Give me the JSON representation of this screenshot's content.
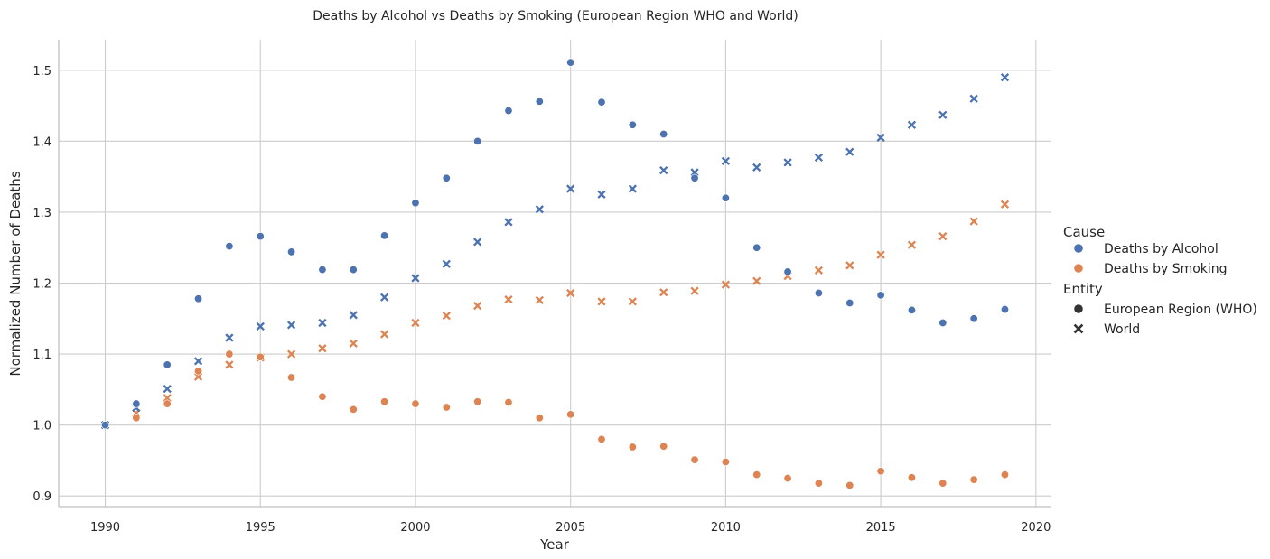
{
  "chart_data": {
    "type": "scatter",
    "title": "Deaths by Alcohol vs Deaths by Smoking (European Region WHO and World)",
    "xlabel": "Year",
    "ylabel": "Normalized Number of Deaths",
    "xlim": [
      1988.5,
      2020.5
    ],
    "ylim": [
      0.885,
      1.543
    ],
    "xticks": [
      1990,
      1995,
      2000,
      2005,
      2010,
      2015,
      2020
    ],
    "yticks": [
      0.9,
      1.0,
      1.1,
      1.2,
      1.3,
      1.4,
      1.5
    ],
    "grid": true,
    "legend_placement": "right",
    "legend": {
      "hue_title": "Cause",
      "hue_items": [
        {
          "label": "Deaths by Alcohol",
          "color": "#4c72b0"
        },
        {
          "label": "Deaths by Smoking",
          "color": "#dd8452"
        }
      ],
      "style_title": "Entity",
      "style_items": [
        {
          "label": "European Region (WHO)",
          "marker": "circle"
        },
        {
          "label": "World",
          "marker": "x"
        }
      ]
    },
    "x": [
      1990,
      1991,
      1992,
      1993,
      1994,
      1995,
      1996,
      1997,
      1998,
      1999,
      2000,
      2001,
      2002,
      2003,
      2004,
      2005,
      2006,
      2007,
      2008,
      2009,
      2010,
      2011,
      2012,
      2013,
      2014,
      2015,
      2016,
      2017,
      2018,
      2019
    ],
    "series": [
      {
        "cause": "Deaths by Alcohol",
        "entity": "European Region (WHO)",
        "color": "#4c72b0",
        "marker": "circle",
        "values": [
          1.0,
          1.03,
          1.085,
          1.178,
          1.252,
          1.266,
          1.244,
          1.219,
          1.219,
          1.267,
          1.313,
          1.348,
          1.4,
          1.443,
          1.456,
          1.511,
          1.455,
          1.423,
          1.41,
          1.348,
          1.32,
          1.25,
          1.216,
          1.186,
          1.172,
          1.183,
          1.162,
          1.144,
          1.15,
          1.163
        ]
      },
      {
        "cause": "Deaths by Alcohol",
        "entity": "World",
        "color": "#4c72b0",
        "marker": "x",
        "values": [
          1.0,
          1.024,
          1.051,
          1.09,
          1.123,
          1.139,
          1.141,
          1.144,
          1.155,
          1.18,
          1.207,
          1.227,
          1.258,
          1.286,
          1.304,
          1.333,
          1.325,
          1.333,
          1.359,
          1.356,
          1.372,
          1.363,
          1.37,
          1.377,
          1.385,
          1.405,
          1.423,
          1.437,
          1.46,
          1.49
        ]
      },
      {
        "cause": "Deaths by Smoking",
        "entity": "European Region (WHO)",
        "color": "#dd8452",
        "marker": "circle",
        "values": [
          1.0,
          1.01,
          1.03,
          1.076,
          1.1,
          1.096,
          1.067,
          1.04,
          1.022,
          1.033,
          1.03,
          1.025,
          1.033,
          1.032,
          1.01,
          1.015,
          0.98,
          0.969,
          0.97,
          0.951,
          0.948,
          0.93,
          0.925,
          0.918,
          0.915,
          0.935,
          0.926,
          0.918,
          0.923,
          0.93
        ]
      },
      {
        "cause": "Deaths by Smoking",
        "entity": "World",
        "color": "#dd8452",
        "marker": "x",
        "values": [
          1.0,
          1.017,
          1.038,
          1.068,
          1.085,
          1.095,
          1.1,
          1.108,
          1.115,
          1.128,
          1.144,
          1.154,
          1.168,
          1.177,
          1.176,
          1.186,
          1.174,
          1.174,
          1.187,
          1.189,
          1.198,
          1.203,
          1.21,
          1.218,
          1.225,
          1.24,
          1.254,
          1.266,
          1.287,
          1.311
        ]
      }
    ]
  }
}
